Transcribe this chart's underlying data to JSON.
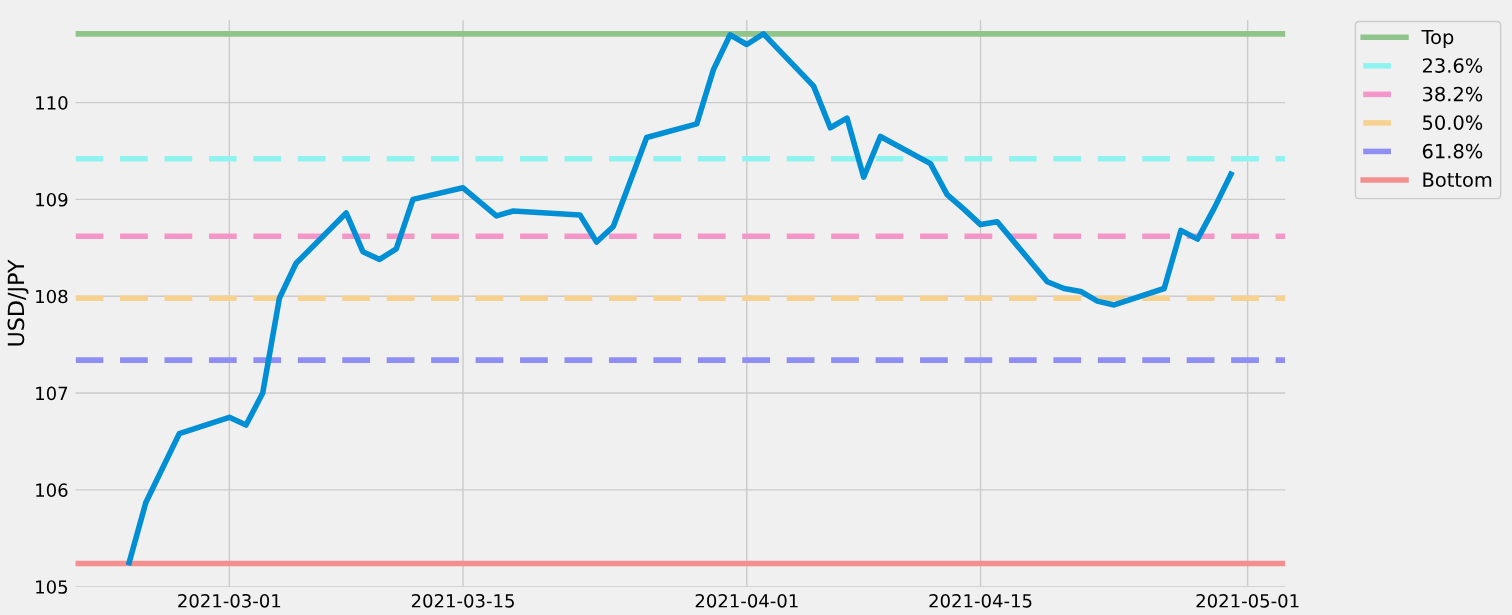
{
  "chart_data": {
    "type": "line",
    "ylabel": "USD/JPY",
    "x": [
      "2021-02-23",
      "2021-02-24",
      "2021-02-26",
      "2021-03-01",
      "2021-03-02",
      "2021-03-03",
      "2021-03-04",
      "2021-03-05",
      "2021-03-08",
      "2021-03-09",
      "2021-03-10",
      "2021-03-11",
      "2021-03-12",
      "2021-03-15",
      "2021-03-17",
      "2021-03-18",
      "2021-03-22",
      "2021-03-23",
      "2021-03-24",
      "2021-03-26",
      "2021-03-29",
      "2021-03-30",
      "2021-03-31",
      "2021-04-01",
      "2021-04-02",
      "2021-04-05",
      "2021-04-06",
      "2021-04-07",
      "2021-04-08",
      "2021-04-09",
      "2021-04-12",
      "2021-04-13",
      "2021-04-14",
      "2021-04-15",
      "2021-04-16",
      "2021-04-19",
      "2021-04-20",
      "2021-04-21",
      "2021-04-22",
      "2021-04-23",
      "2021-04-26",
      "2021-04-27",
      "2021-04-28",
      "2021-04-29",
      "2021-04-30"
    ],
    "series": [
      {
        "color": "#008fd5",
        "values": [
          105.25,
          105.87,
          106.58,
          106.75,
          106.67,
          107.0,
          107.98,
          108.34,
          108.86,
          108.46,
          108.38,
          108.49,
          109.0,
          109.12,
          108.83,
          108.88,
          108.84,
          108.56,
          108.72,
          109.64,
          109.78,
          110.34,
          110.7,
          110.6,
          110.71,
          110.17,
          109.74,
          109.84,
          109.23,
          109.65,
          109.37,
          109.05,
          108.9,
          108.74,
          108.77,
          108.15,
          108.08,
          108.05,
          107.95,
          107.91,
          108.08,
          108.68,
          108.59,
          108.91,
          109.26
        ]
      },
      {
        "name": "Top",
        "color": "#8fc48a",
        "line_style": "solid",
        "x": [
          "2021-02-19T19:00",
          "2021-05-03T06:00"
        ],
        "values": [
          110.71,
          110.71
        ]
      },
      {
        "name": "23.6%",
        "color": "#8ff3f0",
        "line_style": "dashed",
        "x": [
          "2021-02-19T19:00",
          "2021-05-03T06:00"
        ],
        "values": [
          109.42,
          109.42
        ]
      },
      {
        "name": "38.2%",
        "color": "#f596c8",
        "line_style": "dashed",
        "x": [
          "2021-02-19T19:00",
          "2021-05-03T06:00"
        ],
        "values": [
          108.62,
          108.62
        ]
      },
      {
        "name": "50.0%",
        "color": "#f7d18f",
        "line_style": "dashed",
        "x": [
          "2021-02-19T19:00",
          "2021-05-03T06:00"
        ],
        "values": [
          107.98,
          107.98
        ]
      },
      {
        "name": "61.8%",
        "color": "#8f8ff3",
        "line_style": "dashed",
        "x": [
          "2021-02-19T19:00",
          "2021-05-03T06:00"
        ],
        "values": [
          107.34,
          107.34
        ]
      },
      {
        "name": "Bottom",
        "color": "#f48f8f",
        "line_style": "solid",
        "x": [
          "2021-02-19T19:00",
          "2021-05-03T06:00"
        ],
        "values": [
          105.24,
          105.24
        ]
      }
    ],
    "xlim": [
      "2021-02-19T19:00",
      "2021-05-03T06:00"
    ],
    "xticks": [
      "2021-03-01",
      "2021-03-15",
      "2021-04-01",
      "2021-04-15",
      "2021-05-01"
    ],
    "ylim": [
      105,
      110.85
    ],
    "yticks": [
      105,
      106,
      107,
      108,
      109,
      110
    ],
    "grid": true,
    "legend": "top right",
    "line_style": "solid",
    "marker": "none"
  }
}
